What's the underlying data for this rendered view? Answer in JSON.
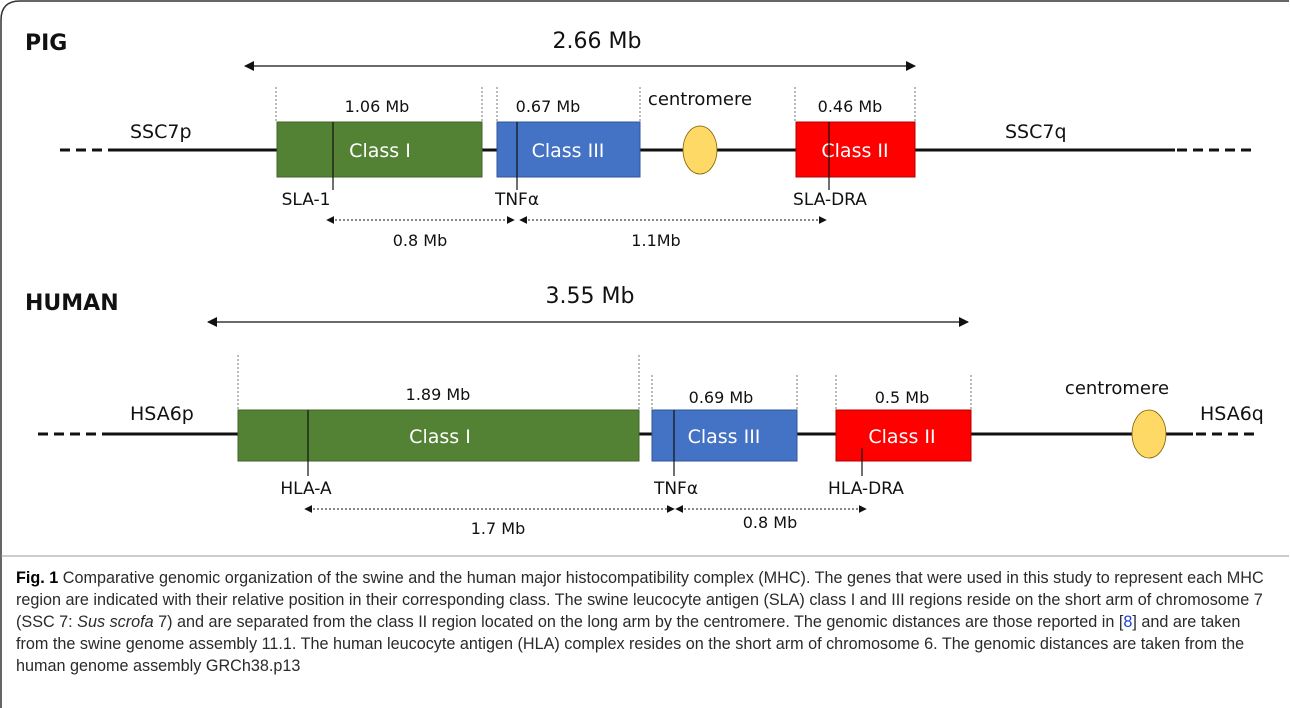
{
  "pig": {
    "title": "PIG",
    "span": "2.66 Mb",
    "arm_left": "SSC7p",
    "arm_right": "SSC7q",
    "centromere": "centromere",
    "class1": {
      "label": "Class I",
      "size": "1.06 Mb"
    },
    "class3": {
      "label": "Class III",
      "size": "0.67 Mb"
    },
    "class2": {
      "label": "Class II",
      "size": "0.46 Mb"
    },
    "gene1": "SLA-1",
    "gene2": "TNFα",
    "gene3": "SLA-DRA",
    "dist1": "0.8 Mb",
    "dist2": "1.1Mb"
  },
  "human": {
    "title": "HUMAN",
    "span": "3.55 Mb",
    "arm_left": "HSA6p",
    "arm_right": "HSA6q",
    "centromere": "centromere",
    "class1": {
      "label": "Class I",
      "size": "1.89 Mb"
    },
    "class3": {
      "label": "Class III",
      "size": "0.69 Mb"
    },
    "class2": {
      "label": "Class II",
      "size": "0.5 Mb"
    },
    "gene1": "HLA-A",
    "gene2": "TNFα",
    "gene3": "HLA-DRA",
    "dist1": "1.7 Mb",
    "dist2": "0.8 Mb"
  },
  "colors": {
    "class1": "#548235",
    "class3": "#4472C4",
    "class2": "#FF0000",
    "centromere": "#FFD966"
  },
  "caption": {
    "fig": "Fig. 1",
    "t1": " Comparative genomic organization of the swine and the human major histocompatibility complex (MHC). The genes that were used in this study to represent each MHC region are indicated with their relative position in their corresponding class. The swine leucocyte antigen (SLA) class I and III regions reside on the short arm of chromosome 7 (SSC 7: ",
    "species": "Sus scrofa",
    "t2": " 7) and are separated from the class II region located on the long arm by the centromere. The genomic distances are those reported in [",
    "ref": "8",
    "t3": "] and are taken from the swine genome assembly 11.1. The human leucocyte antigen (HLA) complex resides on the short arm of chromosome 6. The genomic distances are taken from the human genome assembly GRCh38.p13"
  }
}
